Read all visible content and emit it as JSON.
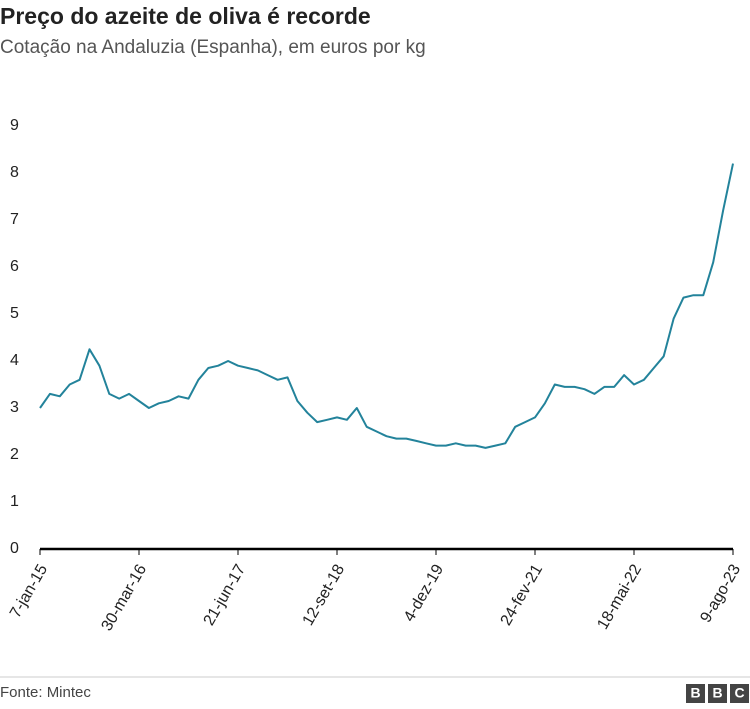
{
  "chart_data": {
    "type": "line",
    "title": "Preço do azeite de oliva é recorde",
    "subtitle": "Cotação na Andaluzia (Espanha), em euros por kg",
    "source": "Fonte: Mintec",
    "logo": [
      "B",
      "B",
      "C"
    ],
    "categories": [
      "7-jan-15",
      null,
      null,
      null,
      null,
      null,
      null,
      null,
      null,
      null,
      "30-mar-16",
      null,
      null,
      null,
      null,
      null,
      null,
      null,
      null,
      null,
      "21-jun-17",
      null,
      null,
      null,
      null,
      null,
      null,
      null,
      null,
      null,
      "12-set-18",
      null,
      null,
      null,
      null,
      null,
      null,
      null,
      null,
      null,
      "4-dez-19",
      null,
      null,
      null,
      null,
      null,
      null,
      null,
      null,
      null,
      "24-fev-21",
      null,
      null,
      null,
      null,
      null,
      null,
      null,
      null,
      null,
      "18-mai-22",
      null,
      null,
      null,
      null,
      null,
      null,
      null,
      null,
      null,
      "9-ago-23"
    ],
    "values": [
      3.0,
      3.3,
      3.25,
      3.5,
      3.6,
      4.25,
      3.9,
      3.3,
      3.2,
      3.3,
      3.15,
      3.0,
      3.1,
      3.15,
      3.25,
      3.2,
      3.6,
      3.85,
      3.9,
      4.0,
      3.9,
      3.85,
      3.8,
      3.7,
      3.6,
      3.65,
      3.15,
      2.9,
      2.7,
      2.75,
      2.8,
      2.75,
      3.0,
      2.6,
      2.5,
      2.4,
      2.35,
      2.35,
      2.3,
      2.25,
      2.2,
      2.2,
      2.25,
      2.2,
      2.2,
      2.15,
      2.2,
      2.25,
      2.6,
      2.7,
      2.8,
      3.1,
      3.5,
      3.45,
      3.45,
      3.4,
      3.3,
      3.45,
      3.45,
      3.7,
      3.5,
      3.6,
      3.85,
      4.1,
      4.9,
      5.35,
      5.4,
      5.4,
      6.1,
      7.2,
      8.2
    ],
    "color": "#23839b",
    "ylim": [
      0,
      9
    ],
    "yticks": [
      0,
      1,
      2,
      3,
      4,
      5,
      6,
      7,
      8,
      9
    ],
    "grid": false
  }
}
